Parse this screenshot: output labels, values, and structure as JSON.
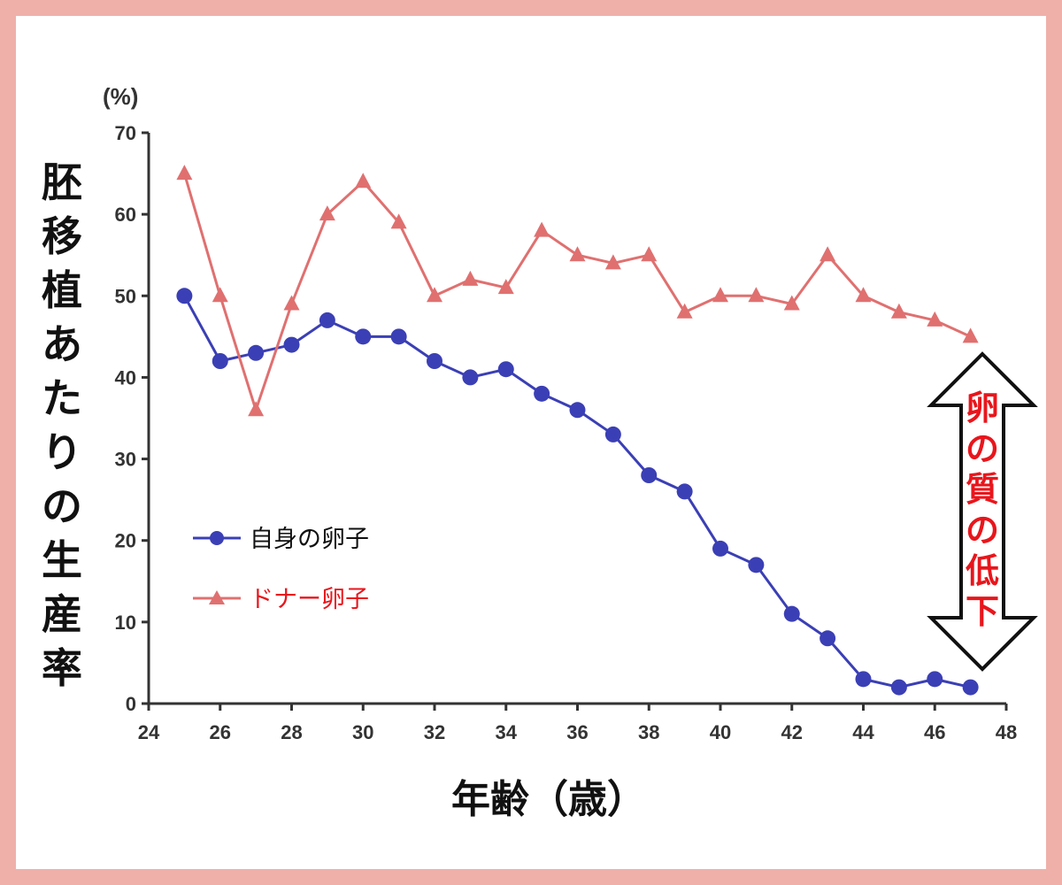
{
  "chart_data": {
    "type": "line",
    "unit": "(%)",
    "ylabel": "胚移植あたりの生産率",
    "xlabel": "年齢（歳）",
    "xlim": [
      24,
      48
    ],
    "ylim": [
      0,
      70
    ],
    "xticks": [
      "24",
      "26",
      "28",
      "30",
      "32",
      "34",
      "36",
      "38",
      "40",
      "42",
      "44",
      "46",
      "48"
    ],
    "yticks": [
      "0",
      "10",
      "20",
      "30",
      "40",
      "50",
      "60",
      "70"
    ],
    "grid": false,
    "legend_position": "left",
    "annotation": "卵の質の低下",
    "series": [
      {
        "name": "自身の卵子",
        "color": "#3b3fb5",
        "marker": "circle",
        "x": [
          25,
          26,
          27,
          28,
          29,
          30,
          31,
          32,
          33,
          34,
          35,
          36,
          37,
          38,
          39,
          40,
          41,
          42,
          43,
          44,
          45,
          46,
          47
        ],
        "y": [
          50,
          42,
          43,
          44,
          47,
          45,
          45,
          42,
          40,
          41,
          38,
          36,
          33,
          28,
          26,
          19,
          17,
          11,
          8,
          3,
          2,
          3,
          2
        ]
      },
      {
        "name": "ドナー卵子",
        "color": "#e07070",
        "marker": "triangle",
        "x": [
          25,
          26,
          27,
          28,
          29,
          30,
          31,
          32,
          33,
          34,
          35,
          36,
          37,
          38,
          39,
          40,
          41,
          42,
          43,
          44,
          45,
          46,
          47
        ],
        "y": [
          65,
          50,
          36,
          49,
          60,
          64,
          59,
          50,
          52,
          51,
          58,
          55,
          54,
          55,
          48,
          50,
          50,
          49,
          55,
          50,
          48,
          47,
          45
        ]
      }
    ]
  },
  "colors": {
    "border": "#efb0aa",
    "axis": "#333333",
    "annotation": "#e8161c",
    "legend_donor_text": "#e8161c",
    "legend_own_text": "#111111"
  }
}
